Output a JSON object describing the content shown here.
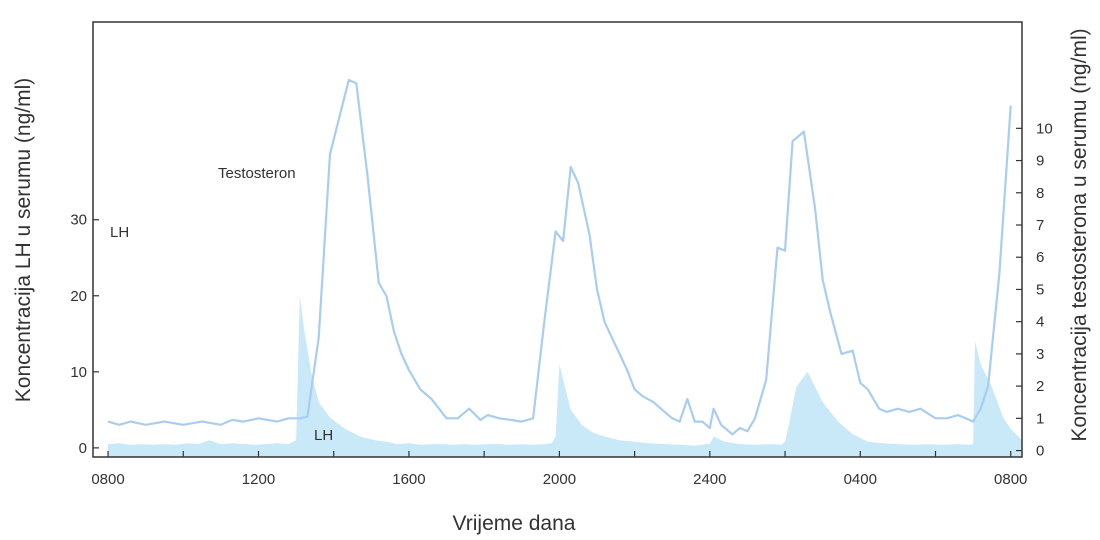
{
  "chart_data": {
    "type": "line",
    "xlabel": "Vrijeme dana",
    "ylabel_left": "Koncentracija LH u serumu (ng/ml)",
    "ylabel_right": "Koncentracija testosterona u serumu (ng/ml)",
    "x_tick_labels": [
      "0800",
      "1200",
      "1600",
      "2000",
      "2400",
      "0400",
      "0800"
    ],
    "x_tick_hours": [
      0,
      4,
      8,
      12,
      16,
      20,
      24
    ],
    "xlim_hours": [
      -0.4,
      24.3
    ],
    "y_left": {
      "ticks": [
        0,
        10,
        20,
        30
      ],
      "range": [
        -1.2,
        56
      ]
    },
    "y_right": {
      "ticks": [
        0,
        1,
        2,
        3,
        4,
        5,
        6,
        7,
        8,
        9,
        10
      ],
      "range": [
        -0.2,
        13.3
      ]
    },
    "annotations": [
      "Testosteron",
      "LH",
      "LH"
    ],
    "colors": {
      "line": "#a9cdef",
      "fill": "#c9e8f8",
      "frame": "#333333",
      "text": "#333333"
    },
    "series": [
      {
        "name": "Testosteron",
        "axis": "right",
        "x": [
          0,
          0.3,
          0.6,
          1.0,
          1.5,
          2.0,
          2.5,
          3.0,
          3.3,
          3.6,
          4.0,
          4.5,
          4.8,
          5.1,
          5.3,
          5.6,
          5.9,
          6.4,
          6.6,
          6.9,
          7.2,
          7.4,
          7.6,
          7.8,
          8.0,
          8.3,
          8.6,
          9.0,
          9.3,
          9.6,
          9.9,
          10.1,
          10.4,
          10.7,
          11.0,
          11.3,
          11.6,
          11.9,
          12.1,
          12.3,
          12.5,
          12.8,
          13.0,
          13.2,
          13.4,
          13.6,
          13.8,
          14.0,
          14.2,
          14.5,
          14.8,
          15.0,
          15.2,
          15.4,
          15.6,
          15.8,
          16.0,
          16.1,
          16.3,
          16.6,
          16.8,
          17.0,
          17.2,
          17.5,
          17.8,
          18.0,
          18.2,
          18.5,
          18.8,
          19.0,
          19.2,
          19.5,
          19.8,
          20.0,
          20.2,
          20.5,
          20.7,
          21.0,
          21.3,
          21.6,
          22.0,
          22.3,
          22.6,
          22.8,
          23.0,
          23.2,
          23.4,
          23.7,
          24.0
        ],
        "y": [
          0.9,
          0.8,
          0.9,
          0.8,
          0.9,
          0.8,
          0.9,
          0.8,
          0.95,
          0.9,
          1.0,
          0.9,
          1.0,
          1.0,
          1.05,
          3.5,
          9.2,
          11.5,
          11.4,
          8.5,
          5.2,
          4.8,
          3.7,
          3.0,
          2.5,
          1.9,
          1.6,
          1.0,
          1.0,
          1.3,
          0.95,
          1.1,
          1.0,
          0.95,
          0.9,
          1.0,
          4.0,
          6.8,
          6.5,
          8.8,
          8.3,
          6.7,
          5.0,
          4.0,
          3.5,
          3.0,
          2.5,
          1.9,
          1.7,
          1.5,
          1.2,
          1.0,
          0.9,
          1.6,
          0.9,
          0.9,
          0.7,
          1.3,
          0.8,
          0.5,
          0.7,
          0.6,
          1.0,
          2.2,
          6.3,
          6.2,
          9.6,
          9.9,
          7.5,
          5.3,
          4.3,
          3.0,
          3.1,
          2.1,
          1.9,
          1.3,
          1.2,
          1.3,
          1.2,
          1.3,
          1.0,
          1.0,
          1.1,
          1.0,
          0.9,
          1.3,
          2.0,
          5.5,
          10.7
        ]
      },
      {
        "name": "LH",
        "axis": "left",
        "x": [
          0,
          0.3,
          0.6,
          0.9,
          1.2,
          1.5,
          1.8,
          2.1,
          2.4,
          2.7,
          3.0,
          3.3,
          3.6,
          3.9,
          4.2,
          4.5,
          4.8,
          5.0,
          5.1,
          5.2,
          5.4,
          5.6,
          5.9,
          6.3,
          6.7,
          7.1,
          7.4,
          7.7,
          8.0,
          8.3,
          8.6,
          8.9,
          9.2,
          9.5,
          9.8,
          10.1,
          10.4,
          10.7,
          11.0,
          11.3,
          11.6,
          11.8,
          11.9,
          12.0,
          12.1,
          12.3,
          12.6,
          12.9,
          13.2,
          13.6,
          14.0,
          14.4,
          14.8,
          15.2,
          15.6,
          15.9,
          16.0,
          16.1,
          16.4,
          16.8,
          17.2,
          17.6,
          17.9,
          18.0,
          18.1,
          18.3,
          18.6,
          19.0,
          19.4,
          19.8,
          20.2,
          20.6,
          21.0,
          21.4,
          21.8,
          22.2,
          22.6,
          22.9,
          23.0,
          23.05,
          23.2,
          23.5,
          23.8,
          24.0,
          24.3
        ],
        "y": [
          0.5,
          0.6,
          0.4,
          0.5,
          0.4,
          0.5,
          0.4,
          0.6,
          0.5,
          1.0,
          0.5,
          0.6,
          0.5,
          0.4,
          0.5,
          0.6,
          0.5,
          1.0,
          20.0,
          16.0,
          10.0,
          6.0,
          4.0,
          2.5,
          1.5,
          1.0,
          0.8,
          0.5,
          0.6,
          0.4,
          0.5,
          0.5,
          0.4,
          0.5,
          0.4,
          0.5,
          0.5,
          0.4,
          0.5,
          0.4,
          0.5,
          0.6,
          1.5,
          11.0,
          9.0,
          5.0,
          3.0,
          2.0,
          1.5,
          1.0,
          0.8,
          0.6,
          0.5,
          0.4,
          0.3,
          0.5,
          0.5,
          1.5,
          0.8,
          0.5,
          0.4,
          0.5,
          0.4,
          0.8,
          3.0,
          8.0,
          10.0,
          6.0,
          3.5,
          1.8,
          0.8,
          0.6,
          0.5,
          0.4,
          0.5,
          0.4,
          0.5,
          0.4,
          0.5,
          14.0,
          11.0,
          8.0,
          4.0,
          2.5,
          1.0
        ]
      }
    ]
  }
}
